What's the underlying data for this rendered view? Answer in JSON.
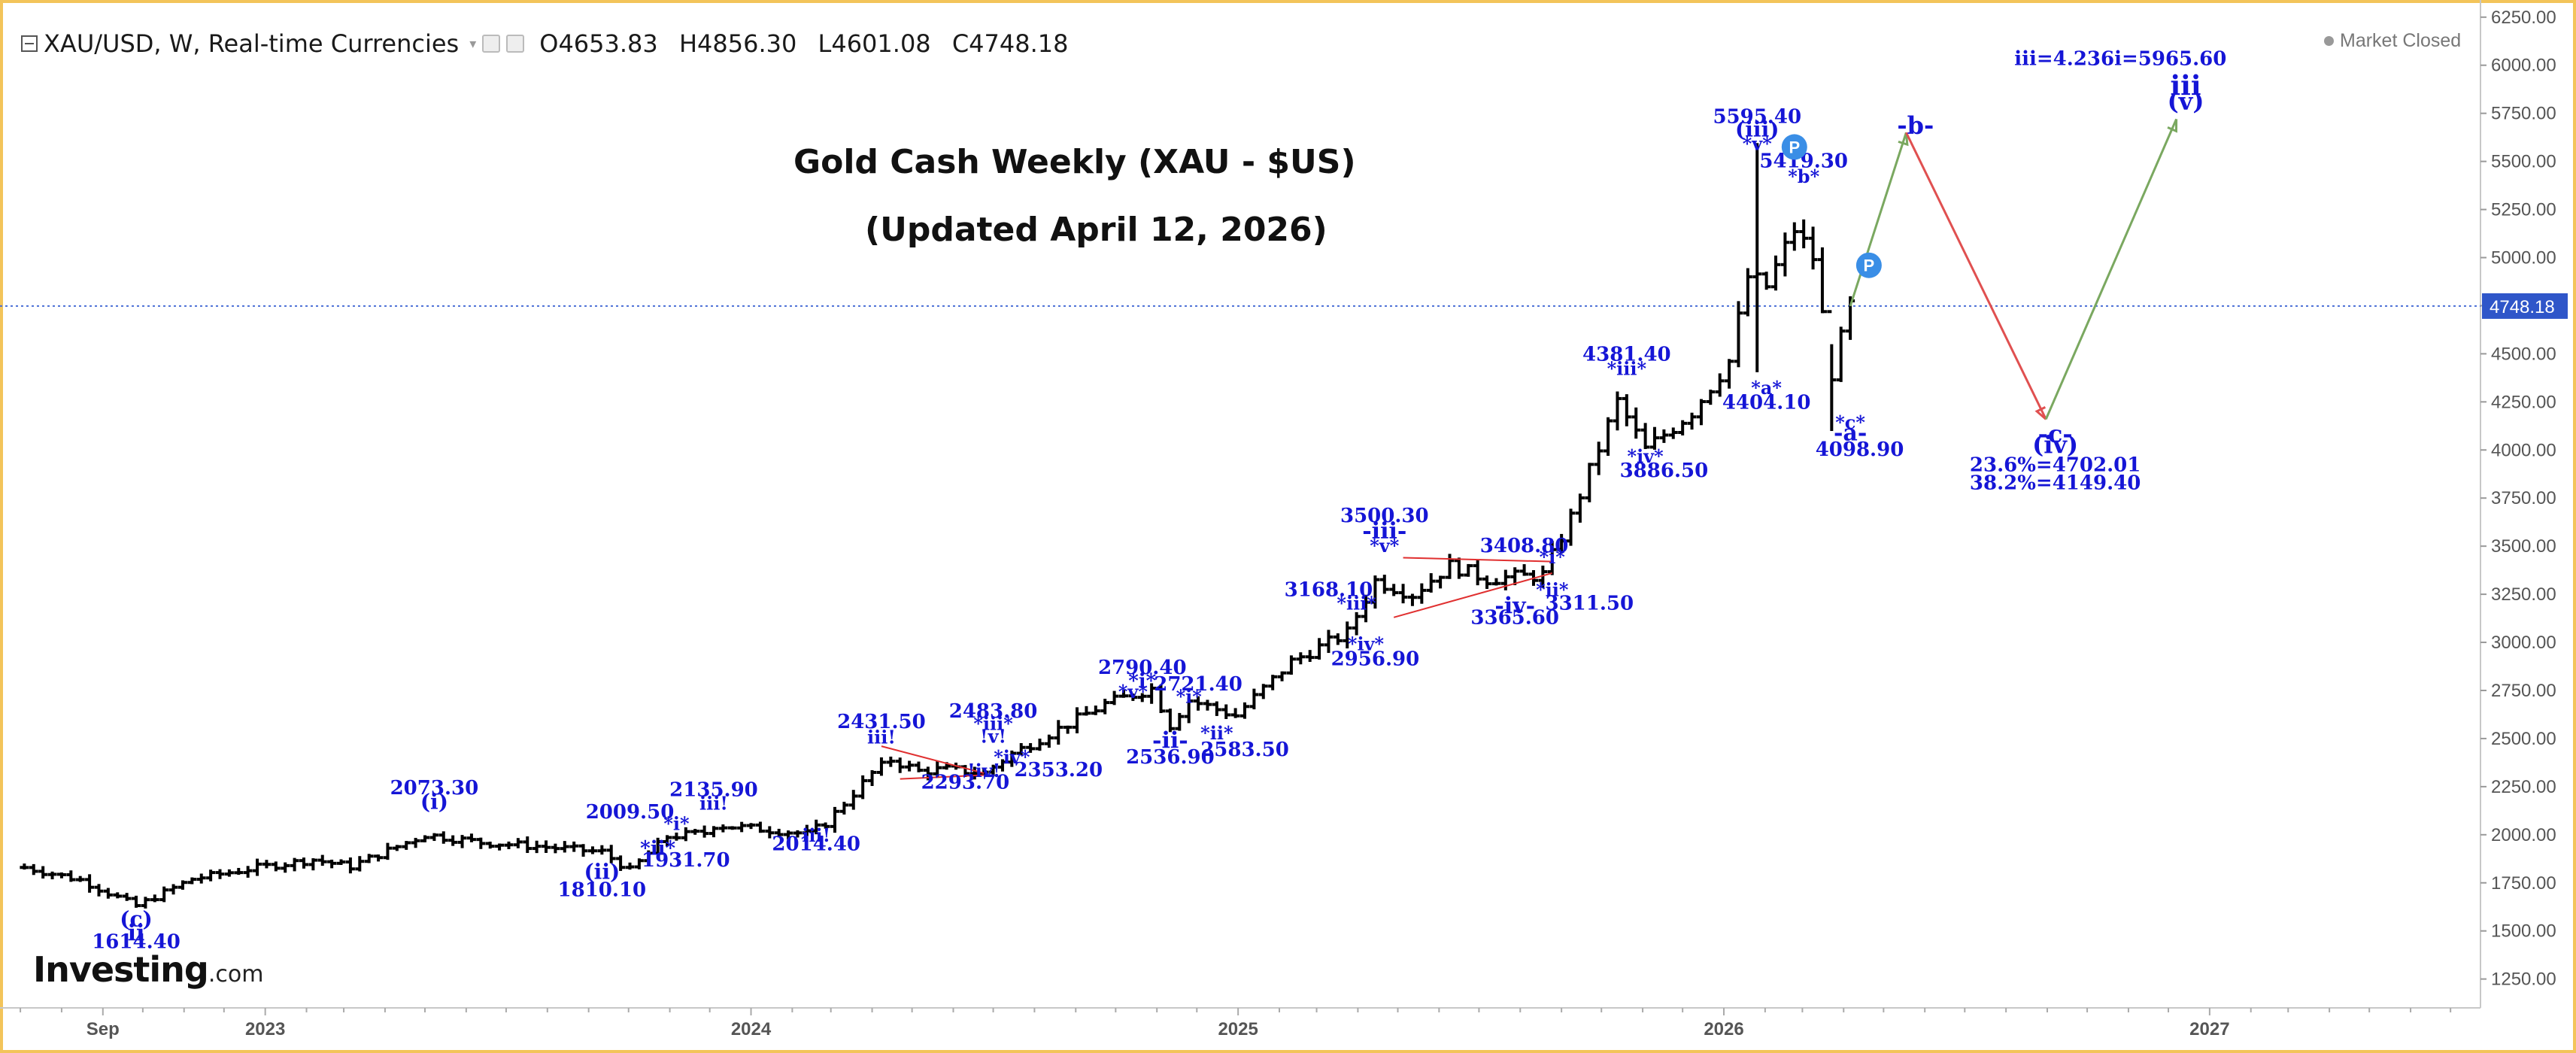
{
  "header": {
    "symbol": "XAU/USD, W, Real-time Currencies",
    "open_label": "O",
    "open": "4653.83",
    "high_label": "H",
    "high": "4856.30",
    "low_label": "L",
    "low": "4601.08",
    "close_label": "C",
    "close": "4748.18",
    "market_status": "Market Closed"
  },
  "titles": {
    "line1": "Gold Cash Weekly (XAU - $US)",
    "line2": "(Updated April 12, 2026)"
  },
  "logo": {
    "brand": "Investing",
    "suffix": ".com"
  },
  "colors": {
    "annotation": "#1515d6",
    "candle": "#000000",
    "price_line": "#4a6fd6",
    "price_badge": "#2f56c9",
    "projection_up": "#7aa860",
    "projection_down": "#e05050",
    "trendline": "#e03030",
    "frame": "#f3c45a",
    "marker": "#3a8ee6"
  },
  "chart_data": {
    "type": "candlestick",
    "interval": "weekly",
    "ylim": [
      1100,
      6300
    ],
    "y_ticks": [
      "6250.00",
      "6000.00",
      "5750.00",
      "5500.00",
      "5250.00",
      "5000.00",
      "4750.00",
      "4500.00",
      "4250.00",
      "4000.00",
      "3750.00",
      "3500.00",
      "3250.00",
      "3000.00",
      "2750.00",
      "2500.00",
      "2250.00",
      "2000.00",
      "1750.00",
      "1500.00",
      "1250.00"
    ],
    "x_ticks": [
      "Sep",
      "2023",
      "2024",
      "2025",
      "2026",
      "2027"
    ],
    "current_price": "4748.18",
    "anchors": [
      [
        "2022-07-04",
        1830
      ],
      [
        "2022-08-15",
        1765
      ],
      [
        "2022-09-26",
        1630
      ],
      [
        "2022-11-07",
        1770
      ],
      [
        "2022-12-26",
        1830
      ],
      [
        "2023-02-06",
        1870
      ],
      [
        "2023-03-06",
        1835
      ],
      [
        "2023-05-01",
        2000
      ],
      [
        "2023-06-12",
        1960
      ],
      [
        "2023-07-24",
        1940
      ],
      [
        "2023-09-11",
        1910
      ],
      [
        "2023-10-02",
        1815
      ],
      [
        "2023-10-30",
        1990
      ],
      [
        "2023-11-27",
        2010
      ],
      [
        "2023-12-04",
        2050
      ],
      [
        "2024-01-08",
        2030
      ],
      [
        "2024-02-12",
        2005
      ],
      [
        "2024-02-26",
        2060
      ],
      [
        "2024-04-01",
        2320
      ],
      [
        "2024-04-15",
        2390
      ],
      [
        "2024-05-06",
        2330
      ],
      [
        "2024-05-27",
        2340
      ],
      [
        "2024-06-24",
        2320
      ],
      [
        "2024-07-15",
        2420
      ],
      [
        "2024-09-23",
        2680
      ],
      [
        "2024-10-28",
        2760
      ],
      [
        "2024-11-11",
        2570
      ],
      [
        "2024-11-25",
        2700
      ],
      [
        "2024-12-30",
        2620
      ],
      [
        "2025-02-10",
        2900
      ],
      [
        "2025-03-24",
        3050
      ],
      [
        "2025-04-14",
        3320
      ],
      [
        "2025-05-12",
        3250
      ],
      [
        "2025-06-09",
        3400
      ],
      [
        "2025-07-07",
        3330
      ],
      [
        "2025-08-18",
        3350
      ],
      [
        "2025-09-08",
        3650
      ],
      [
        "2025-10-13",
        4250
      ],
      [
        "2025-11-03",
        4000
      ],
      [
        "2025-12-08",
        4200
      ],
      [
        "2026-01-05",
        4460
      ],
      [
        "2026-01-19",
        4900
      ],
      [
        "2026-02-02",
        4850
      ],
      [
        "2026-02-23",
        5150
      ],
      [
        "2026-03-09",
        5000
      ],
      [
        "2026-03-23",
        4400
      ],
      [
        "2026-04-06",
        4748
      ]
    ],
    "spikes": [
      {
        "date": "2026-01-26",
        "high": 5595.4,
        "low": 4404.1
      },
      {
        "date": "2026-03-23",
        "high": 4550,
        "low": 4098.9
      }
    ],
    "projections": [
      {
        "from": [
          "2026-04-06",
          4748
        ],
        "to": [
          "2026-05-18",
          5650
        ],
        "dir": "up"
      },
      {
        "from": [
          "2026-05-18",
          5650
        ],
        "to": [
          "2026-08-31",
          4160
        ],
        "dir": "down"
      },
      {
        "from": [
          "2026-08-31",
          4160
        ],
        "to": [
          "2026-12-07",
          5720
        ],
        "dir": "up"
      }
    ],
    "trendlines": [
      {
        "from": [
          "2024-04-08",
          2460
        ],
        "to": [
          "2024-06-24",
          2320
        ]
      },
      {
        "from": [
          "2024-04-22",
          2290
        ],
        "to": [
          "2024-06-24",
          2310
        ]
      },
      {
        "from": [
          "2025-05-05",
          3440
        ],
        "to": [
          "2025-08-25",
          3420
        ]
      },
      {
        "from": [
          "2025-04-28",
          3130
        ],
        "to": [
          "2025-08-25",
          3360
        ]
      }
    ],
    "annotations": [
      {
        "text": "2073.30",
        "date": "2023-05-08",
        "price": 2210,
        "size": 26
      },
      {
        "text": "(i)",
        "date": "2023-05-08",
        "price": 2135,
        "size": 28
      },
      {
        "text": "2009.50",
        "date": "2023-10-02",
        "price": 2085,
        "size": 26
      },
      {
        "text": "2135.90",
        "date": "2023-12-04",
        "price": 2200,
        "size": 26
      },
      {
        "text": "*i*",
        "date": "2023-11-06",
        "price": 2025,
        "size": 24
      },
      {
        "text": "iii!",
        "date": "2023-12-04",
        "price": 2130,
        "size": 24
      },
      {
        "text": "*ii*",
        "date": "2023-10-23",
        "price": 1895,
        "size": 26
      },
      {
        "text": "1931.70",
        "date": "2023-11-13",
        "price": 1835,
        "size": 26
      },
      {
        "text": "(ii)",
        "date": "2023-09-11",
        "price": 1770,
        "size": 28
      },
      {
        "text": "1810.10",
        "date": "2023-09-11",
        "price": 1680,
        "size": 26
      },
      {
        "text": "(c)",
        "date": "2022-09-26",
        "price": 1525,
        "size": 28
      },
      {
        "text": "ii",
        "date": "2022-09-26",
        "price": 1450,
        "size": 30
      },
      {
        "text": "1614.40",
        "date": "2022-09-26",
        "price": 1410,
        "size": 26
      },
      {
        "text": "iii!",
        "date": "2024-02-19",
        "price": 1965,
        "size": 24
      },
      {
        "text": "2014.40",
        "date": "2024-02-19",
        "price": 1920,
        "size": 26
      },
      {
        "text": "2431.50",
        "date": "2024-04-08",
        "price": 2555,
        "size": 26
      },
      {
        "text": "iii!",
        "date": "2024-04-08",
        "price": 2475,
        "size": 24
      },
      {
        "text": "2483.80",
        "date": "2024-07-01",
        "price": 2610,
        "size": 26
      },
      {
        "text": "*iii*",
        "date": "2024-07-01",
        "price": 2545,
        "size": 24
      },
      {
        "text": "!v!",
        "date": "2024-07-01",
        "price": 2478,
        "size": 24
      },
      {
        "text": "*iv*",
        "date": "2024-07-15",
        "price": 2370,
        "size": 24
      },
      {
        "text": "!iv!",
        "date": "2024-06-24",
        "price": 2300,
        "size": 24
      },
      {
        "text": "2353.20",
        "date": "2024-08-19",
        "price": 2305,
        "size": 26
      },
      {
        "text": "2293.70",
        "date": "2024-06-10",
        "price": 2240,
        "size": 26
      },
      {
        "text": "2790.40",
        "date": "2024-10-21",
        "price": 2835,
        "size": 26
      },
      {
        "text": "*i*",
        "date": "2024-10-21",
        "price": 2765,
        "size": 26
      },
      {
        "text": "*v*",
        "date": "2024-10-14",
        "price": 2710,
        "size": 24
      },
      {
        "text": "2721.40",
        "date": "2024-12-02",
        "price": 2750,
        "size": 26
      },
      {
        "text": "*i*",
        "date": "2024-11-25",
        "price": 2685,
        "size": 24
      },
      {
        "text": "-ii-",
        "date": "2024-11-11",
        "price": 2450,
        "size": 30
      },
      {
        "text": "*ii*",
        "date": "2024-12-16",
        "price": 2495,
        "size": 24
      },
      {
        "text": "2536.90",
        "date": "2024-11-11",
        "price": 2370,
        "size": 26
      },
      {
        "text": "2583.50",
        "date": "2025-01-06",
        "price": 2410,
        "size": 26
      },
      {
        "text": "3168.10",
        "date": "2025-03-10",
        "price": 3240,
        "size": 26
      },
      {
        "text": "*iii*",
        "date": "2025-03-31",
        "price": 3170,
        "size": 24
      },
      {
        "text": "*iv*",
        "date": "2025-04-07",
        "price": 2960,
        "size": 24
      },
      {
        "text": "2956.90",
        "date": "2025-04-14",
        "price": 2880,
        "size": 26
      },
      {
        "text": "3500.30",
        "date": "2025-04-21",
        "price": 3625,
        "size": 26
      },
      {
        "text": "-iii-",
        "date": "2025-04-21",
        "price": 3540,
        "size": 30
      },
      {
        "text": "*v*",
        "date": "2025-04-21",
        "price": 3470,
        "size": 24
      },
      {
        "text": "3408.80",
        "date": "2025-08-04",
        "price": 3470,
        "size": 26
      },
      {
        "text": "*i*",
        "date": "2025-08-25",
        "price": 3410,
        "size": 24
      },
      {
        "text": "*ii*",
        "date": "2025-08-25",
        "price": 3240,
        "size": 24
      },
      {
        "text": "-iv-",
        "date": "2025-07-28",
        "price": 3150,
        "size": 30
      },
      {
        "text": "3311.50",
        "date": "2025-09-22",
        "price": 3170,
        "size": 26
      },
      {
        "text": "3365.60",
        "date": "2025-07-28",
        "price": 3095,
        "size": 26
      },
      {
        "text": "4381.40",
        "date": "2025-10-20",
        "price": 4465,
        "size": 26
      },
      {
        "text": "*iii*",
        "date": "2025-10-20",
        "price": 4390,
        "size": 24
      },
      {
        "text": "*iv*",
        "date": "2025-11-03",
        "price": 3935,
        "size": 24
      },
      {
        "text": "3886.50",
        "date": "2025-11-17",
        "price": 3860,
        "size": 26
      },
      {
        "text": "5595.40",
        "date": "2026-01-26",
        "price": 5700,
        "size": 26
      },
      {
        "text": "(iii)",
        "date": "2026-01-26",
        "price": 5630,
        "size": 28
      },
      {
        "text": "*v*",
        "date": "2026-01-26",
        "price": 5560,
        "size": 24
      },
      {
        "text": "5419.30",
        "date": "2026-03-02",
        "price": 5470,
        "size": 26
      },
      {
        "text": "*b*",
        "date": "2026-03-02",
        "price": 5390,
        "size": 24
      },
      {
        "text": "*a*",
        "date": "2026-02-02",
        "price": 4290,
        "size": 24
      },
      {
        "text": "4404.10",
        "date": "2026-02-02",
        "price": 4215,
        "size": 26
      },
      {
        "text": "*c*",
        "date": "2026-04-06",
        "price": 4110,
        "size": 24
      },
      {
        "text": "-a-",
        "date": "2026-04-06",
        "price": 4050,
        "size": 30
      },
      {
        "text": "4098.90",
        "date": "2026-04-13",
        "price": 3970,
        "size": 26
      },
      {
        "text": "-b-",
        "date": "2026-05-25",
        "price": 5645,
        "size": 32
      },
      {
        "text": "-c-",
        "date": "2026-09-07",
        "price": 4040,
        "size": 32
      },
      {
        "text": "(iv)",
        "date": "2026-09-07",
        "price": 3985,
        "size": 32
      },
      {
        "text": "23.6%=4702.01",
        "date": "2026-09-07",
        "price": 3890,
        "size": 26
      },
      {
        "text": "38.2%=4149.40",
        "date": "2026-09-07",
        "price": 3795,
        "size": 26
      },
      {
        "text": "iii=4.236i=5965.60",
        "date": "2026-10-26",
        "price": 6000,
        "size": 26
      },
      {
        "text": "iii",
        "date": "2026-12-14",
        "price": 5845,
        "size": 36
      },
      {
        "text": "(v)",
        "date": "2026-12-14",
        "price": 5770,
        "size": 32
      }
    ],
    "markers": [
      {
        "label": "P",
        "date": "2026-02-23",
        "price": 5575
      },
      {
        "label": "P",
        "date": "2026-04-20",
        "price": 4960
      }
    ]
  }
}
